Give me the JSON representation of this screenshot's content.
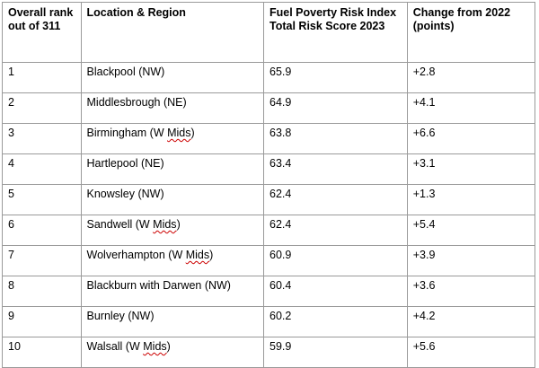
{
  "table": {
    "headers": [
      "Overall rank out of 311",
      "Location & Region",
      "Fuel Poverty Risk Index Total Risk Score 2023",
      "Change from 2022 (points)"
    ],
    "rows": [
      {
        "rank": "1",
        "location": "Blackpool (NW)",
        "location_pre": "Blackpool (NW)",
        "location_flag": "",
        "location_post": "",
        "score": "65.9",
        "change": "+2.8"
      },
      {
        "rank": "2",
        "location": "Middlesbrough (NE)",
        "location_pre": "Middlesbrough (NE)",
        "location_flag": "",
        "location_post": "",
        "score": "64.9",
        "change": "+4.1"
      },
      {
        "rank": "3",
        "location": "Birmingham (W Mids)",
        "location_pre": "Birmingham (W ",
        "location_flag": "Mids",
        "location_post": ")",
        "score": "63.8",
        "change": "+6.6"
      },
      {
        "rank": "4",
        "location": "Hartlepool (NE)",
        "location_pre": "Hartlepool (NE)",
        "location_flag": "",
        "location_post": "",
        "score": "63.4",
        "change": "+3.1"
      },
      {
        "rank": "5",
        "location": "Knowsley (NW)",
        "location_pre": "Knowsley (NW)",
        "location_flag": "",
        "location_post": "",
        "score": "62.4",
        "change": "+1.3"
      },
      {
        "rank": "6",
        "location": "Sandwell (W Mids)",
        "location_pre": "Sandwell (W ",
        "location_flag": "Mids",
        "location_post": ")",
        "score": "62.4",
        "change": "+5.4"
      },
      {
        "rank": "7",
        "location": "Wolverhampton (W Mids)",
        "location_pre": "Wolverhampton (W ",
        "location_flag": "Mids",
        "location_post": ")",
        "score": "60.9",
        "change": "+3.9"
      },
      {
        "rank": "8",
        "location": "Blackburn with Darwen (NW)",
        "location_pre": "Blackburn with Darwen (NW)",
        "location_flag": "",
        "location_post": "",
        "score": "60.4",
        "change": "+3.6"
      },
      {
        "rank": "9",
        "location": "Burnley (NW)",
        "location_pre": "Burnley (NW)",
        "location_flag": "",
        "location_post": "",
        "score": "60.2",
        "change": "+4.2"
      },
      {
        "rank": "10",
        "location": "Walsall (W Mids)",
        "location_pre": "Walsall (W ",
        "location_flag": "Mids",
        "location_post": ")",
        "score": "59.9",
        "change": "+5.6"
      }
    ]
  },
  "colors": {
    "border": "#9a9a9a",
    "spellcheck_underline": "#cc0000"
  }
}
